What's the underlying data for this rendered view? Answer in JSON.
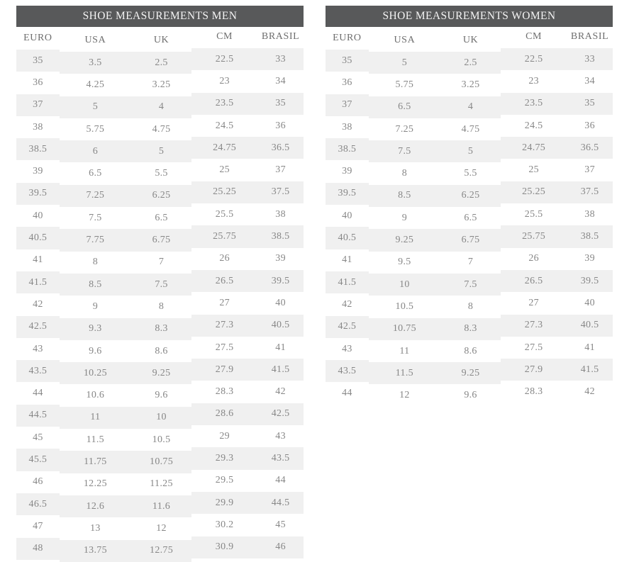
{
  "colors": {
    "header_bg": "#58595a",
    "header_text": "#f4f4f4",
    "col_header_text": "#6e6e6e",
    "cell_text": "#878787",
    "stripe": "#f0f0f0",
    "page_bg": "#ffffff"
  },
  "tables": [
    {
      "id": "men",
      "title": "SHOE MEASUREMENTS MEN",
      "columns": [
        "EURO",
        "USA",
        "UK",
        "CM",
        "BRASIL"
      ],
      "rows": [
        [
          "35",
          "3.5",
          "2.5",
          "22.5",
          "33"
        ],
        [
          "36",
          "4.25",
          "3.25",
          "23",
          "34"
        ],
        [
          "37",
          "5",
          "4",
          "23.5",
          "35"
        ],
        [
          "38",
          "5.75",
          "4.75",
          "24.5",
          "36"
        ],
        [
          "38.5",
          "6",
          "5",
          "24.75",
          "36.5"
        ],
        [
          "39",
          "6.5",
          "5.5",
          "25",
          "37"
        ],
        [
          "39.5",
          "7.25",
          "6.25",
          "25.25",
          "37.5"
        ],
        [
          "40",
          "7.5",
          "6.5",
          "25.5",
          "38"
        ],
        [
          "40.5",
          "7.75",
          "6.75",
          "25.75",
          "38.5"
        ],
        [
          "41",
          "8",
          "7",
          "26",
          "39"
        ],
        [
          "41.5",
          "8.5",
          "7.5",
          "26.5",
          "39.5"
        ],
        [
          "42",
          "9",
          "8",
          "27",
          "40"
        ],
        [
          "42.5",
          "9.3",
          "8.3",
          "27.3",
          "40.5"
        ],
        [
          "43",
          "9.6",
          "8.6",
          "27.5",
          "41"
        ],
        [
          "43.5",
          "10.25",
          "9.25",
          "27.9",
          "41.5"
        ],
        [
          "44",
          "10.6",
          "9.6",
          "28.3",
          "42"
        ],
        [
          "44.5",
          "11",
          "10",
          "28.6",
          "42.5"
        ],
        [
          "45",
          "11.5",
          "10.5",
          "29",
          "43"
        ],
        [
          "45.5",
          "11.75",
          "10.75",
          "29.3",
          "43.5"
        ],
        [
          "46",
          "12.25",
          "11.25",
          "29.5",
          "44"
        ],
        [
          "46.5",
          "12.6",
          "11.6",
          "29.9",
          "44.5"
        ],
        [
          "47",
          "13",
          "12",
          "30.2",
          "45"
        ],
        [
          "48",
          "13.75",
          "12.75",
          "30.9",
          "46"
        ]
      ]
    },
    {
      "id": "women",
      "title": "SHOE MEASUREMENTS WOMEN",
      "columns": [
        "EURO",
        "USA",
        "UK",
        "CM",
        "BRASIL"
      ],
      "rows": [
        [
          "35",
          "5",
          "2.5",
          "22.5",
          "33"
        ],
        [
          "36",
          "5.75",
          "3.25",
          "23",
          "34"
        ],
        [
          "37",
          "6.5",
          "4",
          "23.5",
          "35"
        ],
        [
          "38",
          "7.25",
          "4.75",
          "24.5",
          "36"
        ],
        [
          "38.5",
          "7.5",
          "5",
          "24.75",
          "36.5"
        ],
        [
          "39",
          "8",
          "5.5",
          "25",
          "37"
        ],
        [
          "39.5",
          "8.5",
          "6.25",
          "25.25",
          "37.5"
        ],
        [
          "40",
          "9",
          "6.5",
          "25.5",
          "38"
        ],
        [
          "40.5",
          "9.25",
          "6.75",
          "25.75",
          "38.5"
        ],
        [
          "41",
          "9.5",
          "7",
          "26",
          "39"
        ],
        [
          "41.5",
          "10",
          "7.5",
          "26.5",
          "39.5"
        ],
        [
          "42",
          "10.5",
          "8",
          "27",
          "40"
        ],
        [
          "42.5",
          "10.75",
          "8.3",
          "27.3",
          "40.5"
        ],
        [
          "43",
          "11",
          "8.6",
          "27.5",
          "41"
        ],
        [
          "43.5",
          "11.5",
          "9.25",
          "27.9",
          "41.5"
        ],
        [
          "44",
          "12",
          "9.6",
          "28.3",
          "42"
        ]
      ]
    }
  ]
}
